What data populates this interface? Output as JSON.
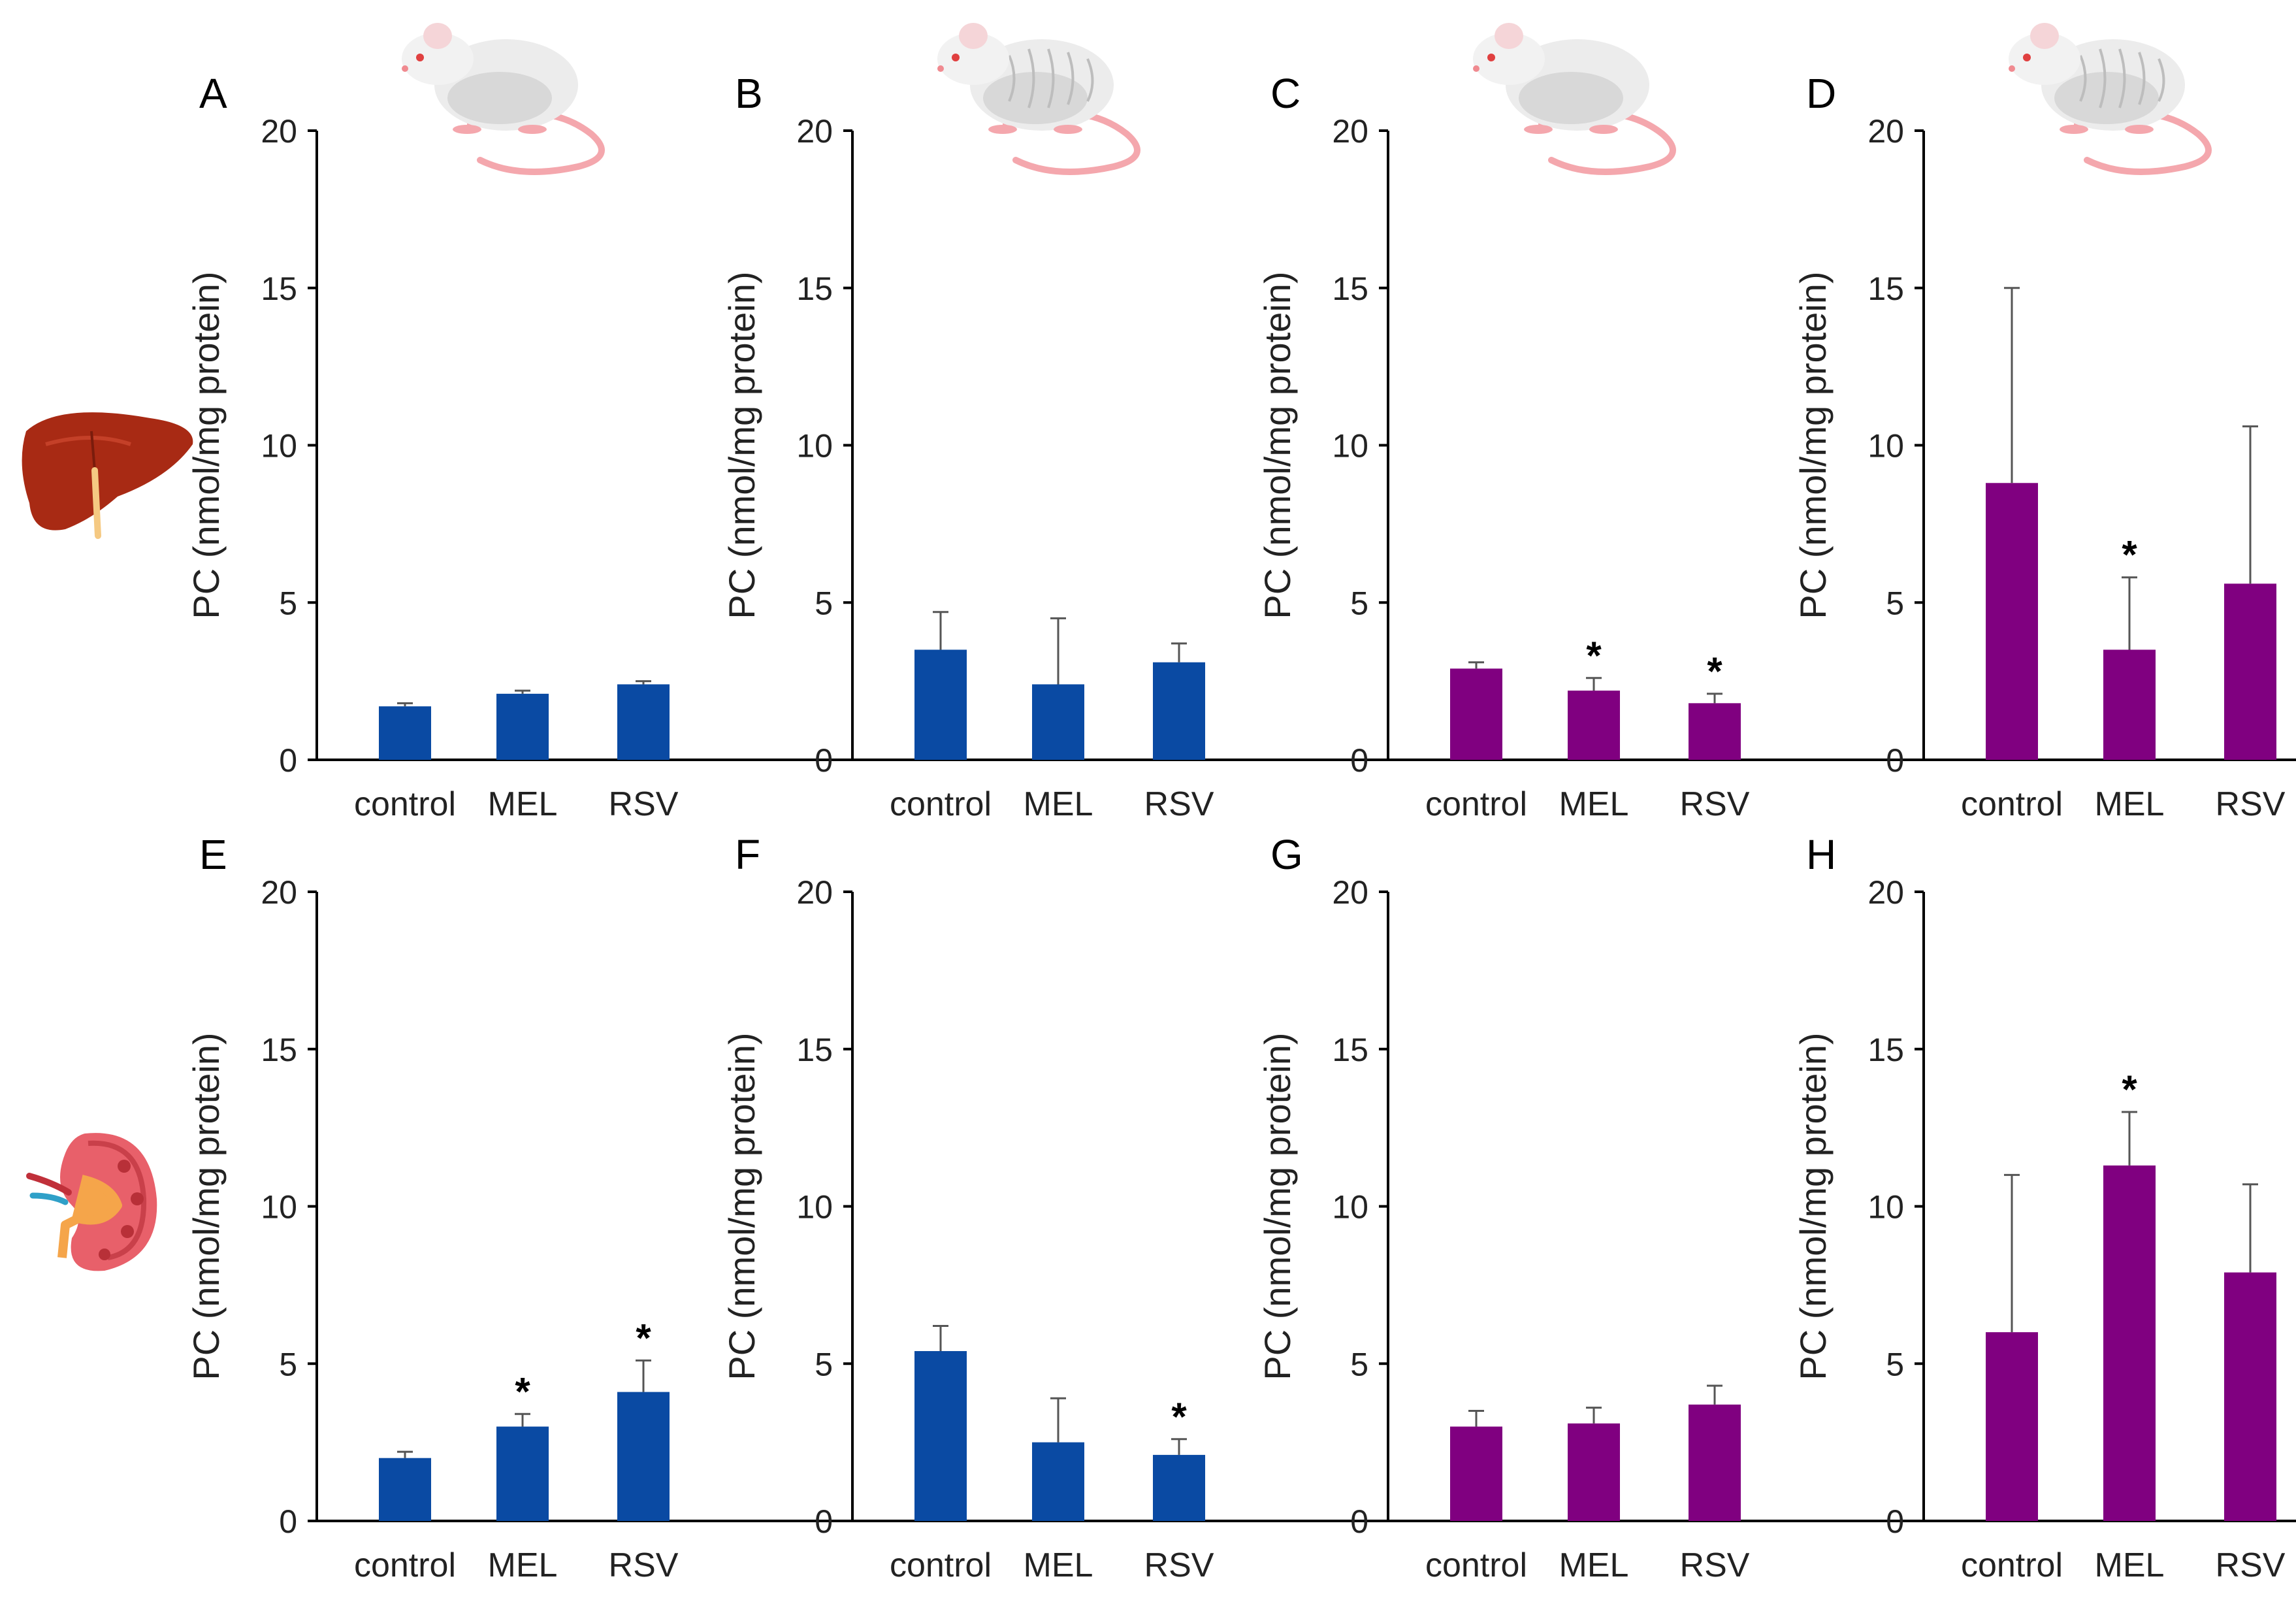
{
  "figure": {
    "colors": {
      "young": "#0a4aa3",
      "old": "#800080",
      "axis": "#000000",
      "text": "#222222"
    },
    "chart_data": [
      {
        "id": "A",
        "panel_label": "A",
        "type": "bar",
        "organ": "liver",
        "rat": "young",
        "color_key": "young",
        "categories": [
          "control",
          "MEL",
          "RSV"
        ],
        "values": [
          1.7,
          2.1,
          2.4
        ],
        "errors": [
          0.1,
          0.1,
          0.1
        ],
        "significant": [
          false,
          false,
          false
        ],
        "ylabel": "PC (nmol/mg protein)",
        "ylim": [
          0,
          20
        ],
        "yticks": [
          0,
          5,
          10,
          15,
          20
        ]
      },
      {
        "id": "B",
        "panel_label": "B",
        "type": "bar",
        "organ": "liver",
        "rat": "old",
        "color_key": "young",
        "categories": [
          "control",
          "MEL",
          "RSV"
        ],
        "values": [
          3.5,
          2.4,
          3.1
        ],
        "errors": [
          1.2,
          2.1,
          0.6
        ],
        "significant": [
          false,
          false,
          false
        ],
        "ylabel": "PC (nmol/mg protein)",
        "ylim": [
          0,
          20
        ],
        "yticks": [
          0,
          5,
          10,
          15,
          20
        ]
      },
      {
        "id": "C",
        "panel_label": "C",
        "type": "bar",
        "organ": "liver",
        "rat": "young",
        "color_key": "old",
        "categories": [
          "control",
          "MEL",
          "RSV"
        ],
        "values": [
          2.9,
          2.2,
          1.8
        ],
        "errors": [
          0.2,
          0.4,
          0.3
        ],
        "significant": [
          false,
          true,
          true
        ],
        "ylabel": "PC (nmol/mg protein)",
        "ylim": [
          0,
          20
        ],
        "yticks": [
          0,
          5,
          10,
          15,
          20
        ]
      },
      {
        "id": "D",
        "panel_label": "D",
        "type": "bar",
        "organ": "liver",
        "rat": "old",
        "color_key": "old",
        "categories": [
          "control",
          "MEL",
          "RSV"
        ],
        "values": [
          8.8,
          3.5,
          5.6
        ],
        "errors": [
          6.2,
          2.3,
          5.0
        ],
        "significant": [
          false,
          true,
          false
        ],
        "ylabel": "PC (nmol/mg protein)",
        "ylim": [
          0,
          20
        ],
        "yticks": [
          0,
          5,
          10,
          15,
          20
        ]
      },
      {
        "id": "E",
        "panel_label": "E",
        "type": "bar",
        "organ": "kidney",
        "rat": "young",
        "color_key": "young",
        "categories": [
          "control",
          "MEL",
          "RSV"
        ],
        "values": [
          2.0,
          3.0,
          4.1
        ],
        "errors": [
          0.2,
          0.4,
          1.0
        ],
        "significant": [
          false,
          true,
          true
        ],
        "ylabel": "PC (nmol/mg protein)",
        "ylim": [
          0,
          20
        ],
        "yticks": [
          0,
          5,
          10,
          15,
          20
        ]
      },
      {
        "id": "F",
        "panel_label": "F",
        "type": "bar",
        "organ": "kidney",
        "rat": "old",
        "color_key": "young",
        "categories": [
          "control",
          "MEL",
          "RSV"
        ],
        "values": [
          5.4,
          2.5,
          2.1
        ],
        "errors": [
          0.8,
          1.4,
          0.5
        ],
        "significant": [
          false,
          false,
          true
        ],
        "ylabel": "PC (nmol/mg protein)",
        "ylim": [
          0,
          20
        ],
        "yticks": [
          0,
          5,
          10,
          15,
          20
        ]
      },
      {
        "id": "G",
        "panel_label": "G",
        "type": "bar",
        "organ": "kidney",
        "rat": "young",
        "color_key": "old",
        "categories": [
          "control",
          "MEL",
          "RSV"
        ],
        "values": [
          3.0,
          3.1,
          3.7
        ],
        "errors": [
          0.5,
          0.5,
          0.6
        ],
        "significant": [
          false,
          false,
          false
        ],
        "ylabel": "PC (nmol/mg protein)",
        "ylim": [
          0,
          20
        ],
        "yticks": [
          0,
          5,
          10,
          15,
          20
        ]
      },
      {
        "id": "H",
        "panel_label": "H",
        "type": "bar",
        "organ": "kidney",
        "rat": "old",
        "color_key": "old",
        "categories": [
          "control",
          "MEL",
          "RSV"
        ],
        "values": [
          6.0,
          11.3,
          7.9
        ],
        "errors": [
          5.0,
          1.7,
          2.8
        ],
        "significant": [
          false,
          true,
          false
        ],
        "ylabel": "PC (nmol/mg protein)",
        "ylim": [
          0,
          20
        ],
        "yticks": [
          0,
          5,
          10,
          15,
          20
        ]
      }
    ]
  }
}
